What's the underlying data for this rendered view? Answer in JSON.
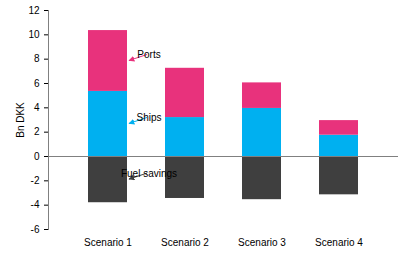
{
  "chart_data": {
    "type": "bar",
    "stacked": true,
    "grid": false,
    "y_label": "Bn DKK",
    "categories": [
      "Scenario 1",
      "Scenario 2",
      "Scenario 3",
      "Scenario 4"
    ],
    "series": [
      {
        "name": "Ships",
        "color": "#00b0f0",
        "values": [
          5.35,
          3.2,
          3.95,
          1.75
        ]
      },
      {
        "name": "Ports",
        "color": "#e8327c",
        "values": [
          5.0,
          4.05,
          2.1,
          1.2
        ]
      },
      {
        "name": "Fuel savings",
        "color": "#3f3f3f",
        "values": [
          -3.8,
          -3.45,
          -3.55,
          -3.15
        ]
      }
    ],
    "ylim": [
      -6,
      12
    ],
    "yticks": [
      -6,
      -4,
      -2,
      0,
      2,
      4,
      6,
      8,
      10,
      12
    ]
  }
}
